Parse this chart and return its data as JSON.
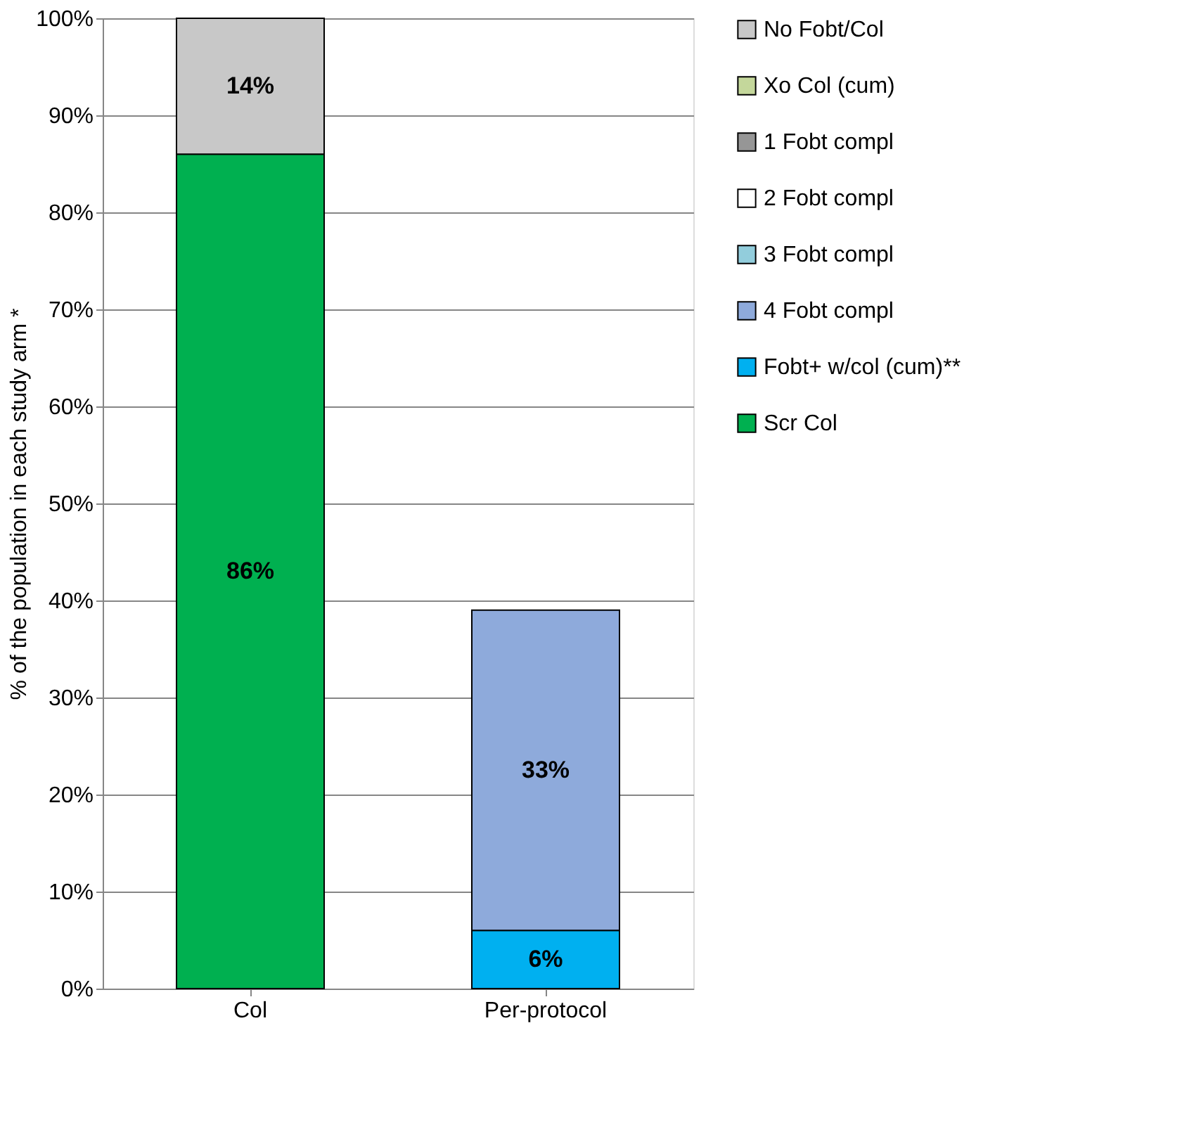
{
  "chart_data": {
    "type": "bar",
    "stacked": true,
    "categories": [
      "Col",
      "Per-protocol"
    ],
    "ylabel": "% of the population in each study arm *",
    "ylim": [
      0,
      100
    ],
    "yticks": [
      {
        "value": 0,
        "label": "0%"
      },
      {
        "value": 10,
        "label": "10%"
      },
      {
        "value": 20,
        "label": "20%"
      },
      {
        "value": 30,
        "label": "30%"
      },
      {
        "value": 40,
        "label": "40%"
      },
      {
        "value": 50,
        "label": "50%"
      },
      {
        "value": 60,
        "label": "60%"
      },
      {
        "value": 70,
        "label": "70%"
      },
      {
        "value": 80,
        "label": "80%"
      },
      {
        "value": 90,
        "label": "90%"
      },
      {
        "value": 100,
        "label": "100%"
      }
    ],
    "grid": "y",
    "legend": "right",
    "series": [
      {
        "name": "Scr Col",
        "color": "#00b050",
        "values": [
          86,
          null
        ],
        "value_labels": [
          "86%",
          null
        ]
      },
      {
        "name": "Fobt+ w/col (cum)**",
        "color": "#00b0f0",
        "values": [
          null,
          6
        ],
        "value_labels": [
          null,
          "6%"
        ]
      },
      {
        "name": "4 Fobt compl",
        "color": "#8eaadb",
        "values": [
          null,
          33
        ],
        "value_labels": [
          null,
          "33%"
        ]
      },
      {
        "name": "3 Fobt compl",
        "color": "#92cddc",
        "values": [
          null,
          null
        ]
      },
      {
        "name": "2 Fobt compl",
        "color": "#ffffff",
        "values": [
          null,
          null
        ]
      },
      {
        "name": "1 Fobt compl",
        "color": "#969696",
        "values": [
          null,
          null
        ]
      },
      {
        "name": "Xo Col (cum)",
        "color": "#c4d79b",
        "values": [
          null,
          null
        ]
      },
      {
        "name": "No Fobt/Col",
        "color": "#c8c8c8",
        "values": [
          14,
          null
        ],
        "value_labels": [
          "14%",
          null
        ]
      }
    ]
  }
}
